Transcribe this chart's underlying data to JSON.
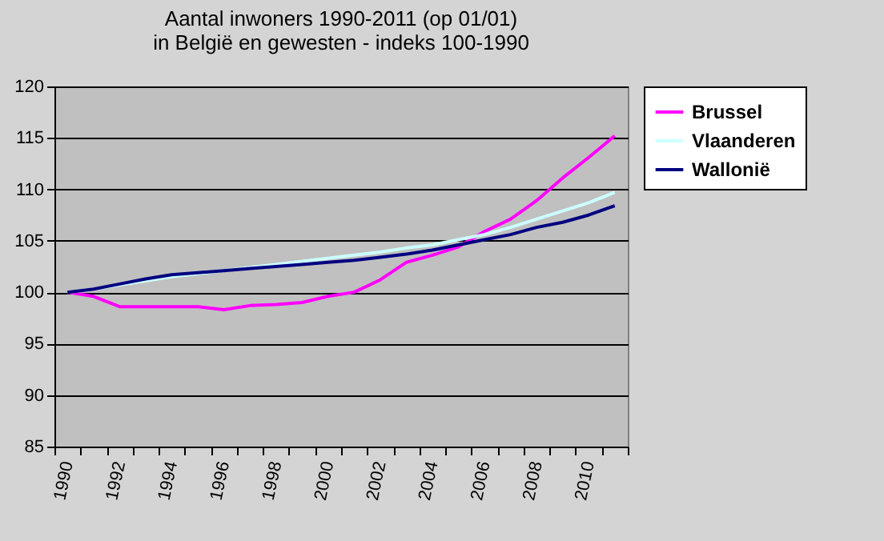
{
  "chart_data": {
    "type": "line",
    "title": "Aantal inwoners 1990-2011 (op 01/01)\nin België en gewesten - indeks 100-1990",
    "categories": [
      "1990",
      null,
      "1992",
      null,
      "1994",
      null,
      "1996",
      null,
      "1998",
      null,
      "2000",
      null,
      "2002",
      null,
      "2004",
      null,
      "2006",
      null,
      "2008",
      null,
      "2010",
      null
    ],
    "series": [
      {
        "name": "Brussel",
        "color": "#ff00ff",
        "values": [
          100,
          99.6,
          98.6,
          98.6,
          98.6,
          98.6,
          98.3,
          98.7,
          98.8,
          99.0,
          99.6,
          100.0,
          101.2,
          102.9,
          103.6,
          104.4,
          105.9,
          107.1,
          108.9,
          111.1,
          113.1,
          115.2
        ]
      },
      {
        "name": "Vlaanderen",
        "color": "#ccffff",
        "values": [
          100,
          100.3,
          100.7,
          101.1,
          101.5,
          101.8,
          102.1,
          102.4,
          102.7,
          103.0,
          103.3,
          103.6,
          103.9,
          104.3,
          104.6,
          105.1,
          105.6,
          106.3,
          107.1,
          107.9,
          108.7,
          109.7
        ]
      },
      {
        "name": "Wallonië",
        "color": "#000080",
        "values": [
          100,
          100.3,
          100.8,
          101.3,
          101.7,
          101.9,
          102.1,
          102.3,
          102.5,
          102.7,
          102.9,
          103.1,
          103.4,
          103.7,
          104.1,
          104.6,
          105.1,
          105.6,
          106.3,
          106.8,
          107.5,
          108.4
        ]
      }
    ],
    "ylim": [
      85,
      120
    ],
    "yticks": [
      85,
      90,
      95,
      100,
      105,
      110,
      115,
      120
    ],
    "grid": "y",
    "legend": "right",
    "marker": "none",
    "line_style": "solid"
  }
}
